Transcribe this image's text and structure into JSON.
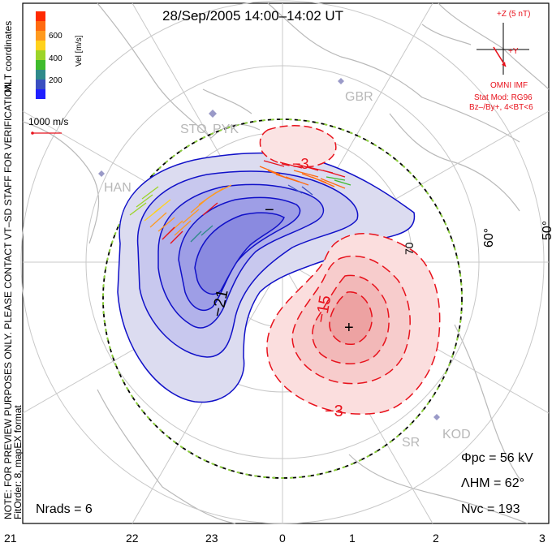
{
  "header": {
    "title": "28/Sep/2005 14:00–14:02 UT"
  },
  "colorbar": {
    "title": "Vel [m/s]",
    "ticks": [
      "600",
      "400",
      "200"
    ],
    "colors": [
      "#ff2a00",
      "#ff6a10",
      "#ff9a1e",
      "#ffd21c",
      "#9cd428",
      "#3fbb2d",
      "#2f8a8a",
      "#3a4fc0",
      "#2020ff"
    ]
  },
  "coords_label": "MLT coordinates",
  "scale_vector": {
    "label": "1000 m/s"
  },
  "imf": {
    "z_label": "+Z (5 nT)",
    "y_label": "+Y",
    "title": "OMNI IMF",
    "stat_mod": "Stat Mod: RG96",
    "condition": "Bz–/By+, 4<BT<6"
  },
  "stations": [
    "GBR",
    "STO",
    "PYK",
    "HAN",
    "KOD",
    "SR"
  ],
  "contours": {
    "labels": [
      "−3",
      "−21",
      "−",
      "70",
      "−15",
      "−3"
    ],
    "minus_marker": "−",
    "plus_marker": "+"
  },
  "latitude_labels": [
    "70",
    "60°",
    "50°"
  ],
  "stats": {
    "phi_pc": "Φpc = 56 kV",
    "lambda_hm": "ΛHM = 62°",
    "n_vc": "Nvc = 193",
    "n_rads": "Nrads = 6"
  },
  "side_note": {
    "line1": "NOTE: FOR PREVIEW PURPOSES ONLY. PLEASE CONTACT VT–SD STAFF FOR VERIFICATION.",
    "line2": "FitOrder: 8, mapEX format"
  },
  "mlt_ticks": [
    "21",
    "22",
    "23",
    "0",
    "1",
    "2",
    "3"
  ]
}
